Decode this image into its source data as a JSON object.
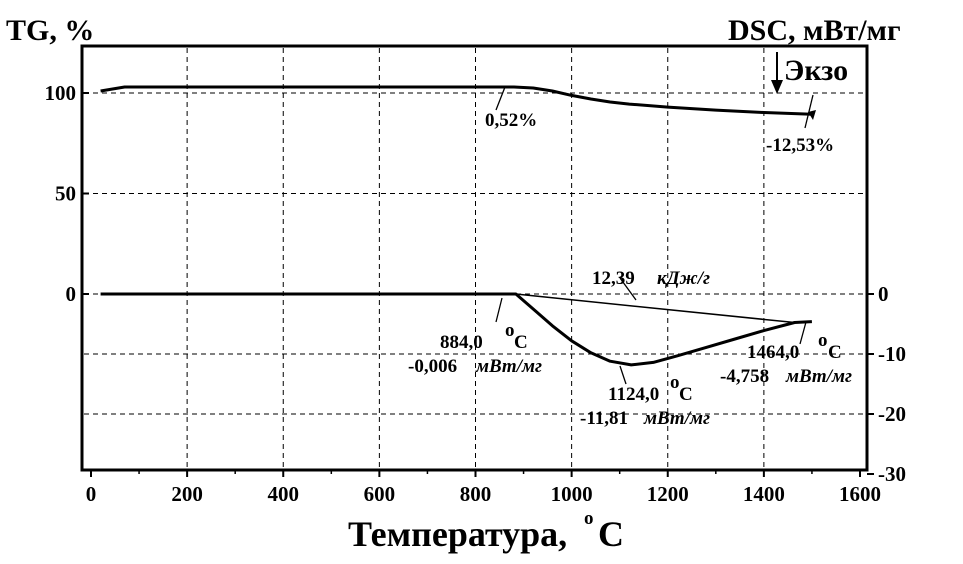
{
  "chart_data": {
    "type": "line",
    "xlabel": "Температура,",
    "xlabel_unit": "C",
    "xlabel_degree": "o",
    "ylabel_left": "TG, %",
    "ylabel_right": "DSC, мВт/мг",
    "exo_label": "Экзо",
    "xlim": [
      0,
      1600
    ],
    "ylim_left": [
      -35,
      120
    ],
    "ylim_right": [
      -30,
      5
    ],
    "x_ticks": [
      "0",
      "200",
      "400",
      "600",
      "800",
      "1000",
      "1200",
      "1400",
      "1600"
    ],
    "x_tick_values": [
      0,
      200,
      400,
      600,
      800,
      1000,
      1200,
      1400,
      1600
    ],
    "y_left_ticks": [
      "100",
      "50",
      "0"
    ],
    "y_left_tick_values": [
      100,
      50,
      0
    ],
    "y_right_ticks": [
      "0",
      "-10",
      "-20",
      "-30"
    ],
    "y_right_tick_values": [
      0,
      -10,
      -20,
      -30
    ],
    "grid": true,
    "series": [
      {
        "axis": "left",
        "x": [
          20,
          70,
          200,
          400,
          600,
          800,
          880,
          920,
          960,
          1000,
          1040,
          1080,
          1120,
          1200,
          1300,
          1400,
          1500
        ],
        "y": [
          101,
          103,
          103,
          103,
          103,
          103,
          103,
          102.5,
          101,
          98.8,
          97,
          95.5,
          94.5,
          93,
          91.5,
          90.3,
          89.4
        ]
      },
      {
        "axis": "right",
        "x": [
          20,
          200,
          400,
          600,
          800,
          884,
          920,
          960,
          1000,
          1040,
          1080,
          1124,
          1170,
          1220,
          1280,
          1340,
          1400,
          1464,
          1500
        ],
        "y": [
          0,
          0,
          0,
          0,
          0,
          -0.006,
          -2.5,
          -5.3,
          -7.8,
          -9.8,
          -11.2,
          -11.81,
          -11.4,
          -10.3,
          -8.9,
          -7.5,
          -6.1,
          -4.758,
          -4.6
        ]
      }
    ],
    "baseline": {
      "axis": "right",
      "x": [
        884,
        1464
      ],
      "y": [
        -0.006,
        -4.758
      ]
    },
    "annotations": {
      "tg_start": {
        "text": "0,52%",
        "x": 880,
        "y": 103
      },
      "tg_end": {
        "text": "-12,53%",
        "x": 1480,
        "y": 89.6
      },
      "enthalpy": {
        "value": "12,39",
        "unit": "кДж/г"
      },
      "onset": {
        "temp": "884,0",
        "deg": "o",
        "temp_unit": "C",
        "value": "-0,006",
        "unit": "мВт/мг"
      },
      "peak": {
        "temp": "1124,0",
        "deg": "o",
        "temp_unit": "C",
        "value": "-11,81",
        "unit": "мВт/мг"
      },
      "end": {
        "temp": "1464,0",
        "deg": "o",
        "temp_unit": "C",
        "value": "-4,758",
        "unit": "мВт/мг"
      }
    }
  }
}
